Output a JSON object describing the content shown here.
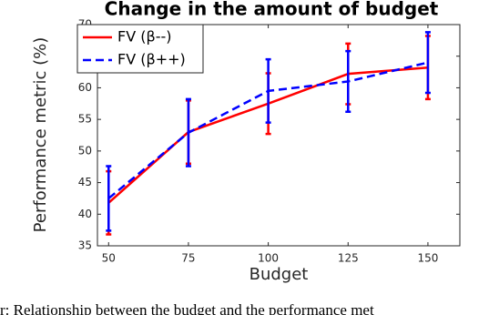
{
  "chart_data": {
    "type": "line",
    "title": "Change in the amount of budget",
    "xlabel": "Budget",
    "ylabel": "Performance metric (%)",
    "x": [
      50,
      75,
      100,
      125,
      150
    ],
    "series": [
      {
        "name": "FV (β--)",
        "color": "#ff0000",
        "dash": false,
        "values": [
          41.8,
          53,
          57.5,
          62.2,
          63.2
        ],
        "errors": [
          5,
          5,
          4.8,
          4.8,
          5
        ]
      },
      {
        "name": "FV (β++)",
        "color": "#0000ff",
        "dash": true,
        "values": [
          42.5,
          52.9,
          59.5,
          61,
          64
        ],
        "errors": [
          5.1,
          5.3,
          5,
          4.8,
          4.8
        ]
      }
    ],
    "xlim": [
      46.5,
      160
    ],
    "xticks": [
      50,
      75,
      100,
      125,
      150
    ],
    "ylim": [
      35,
      70
    ],
    "yticks": [
      35,
      40,
      45,
      50,
      55,
      60,
      65,
      70
    ],
    "legend": "northwest"
  },
  "caption": "r: Relationship between the budget and the performance met"
}
